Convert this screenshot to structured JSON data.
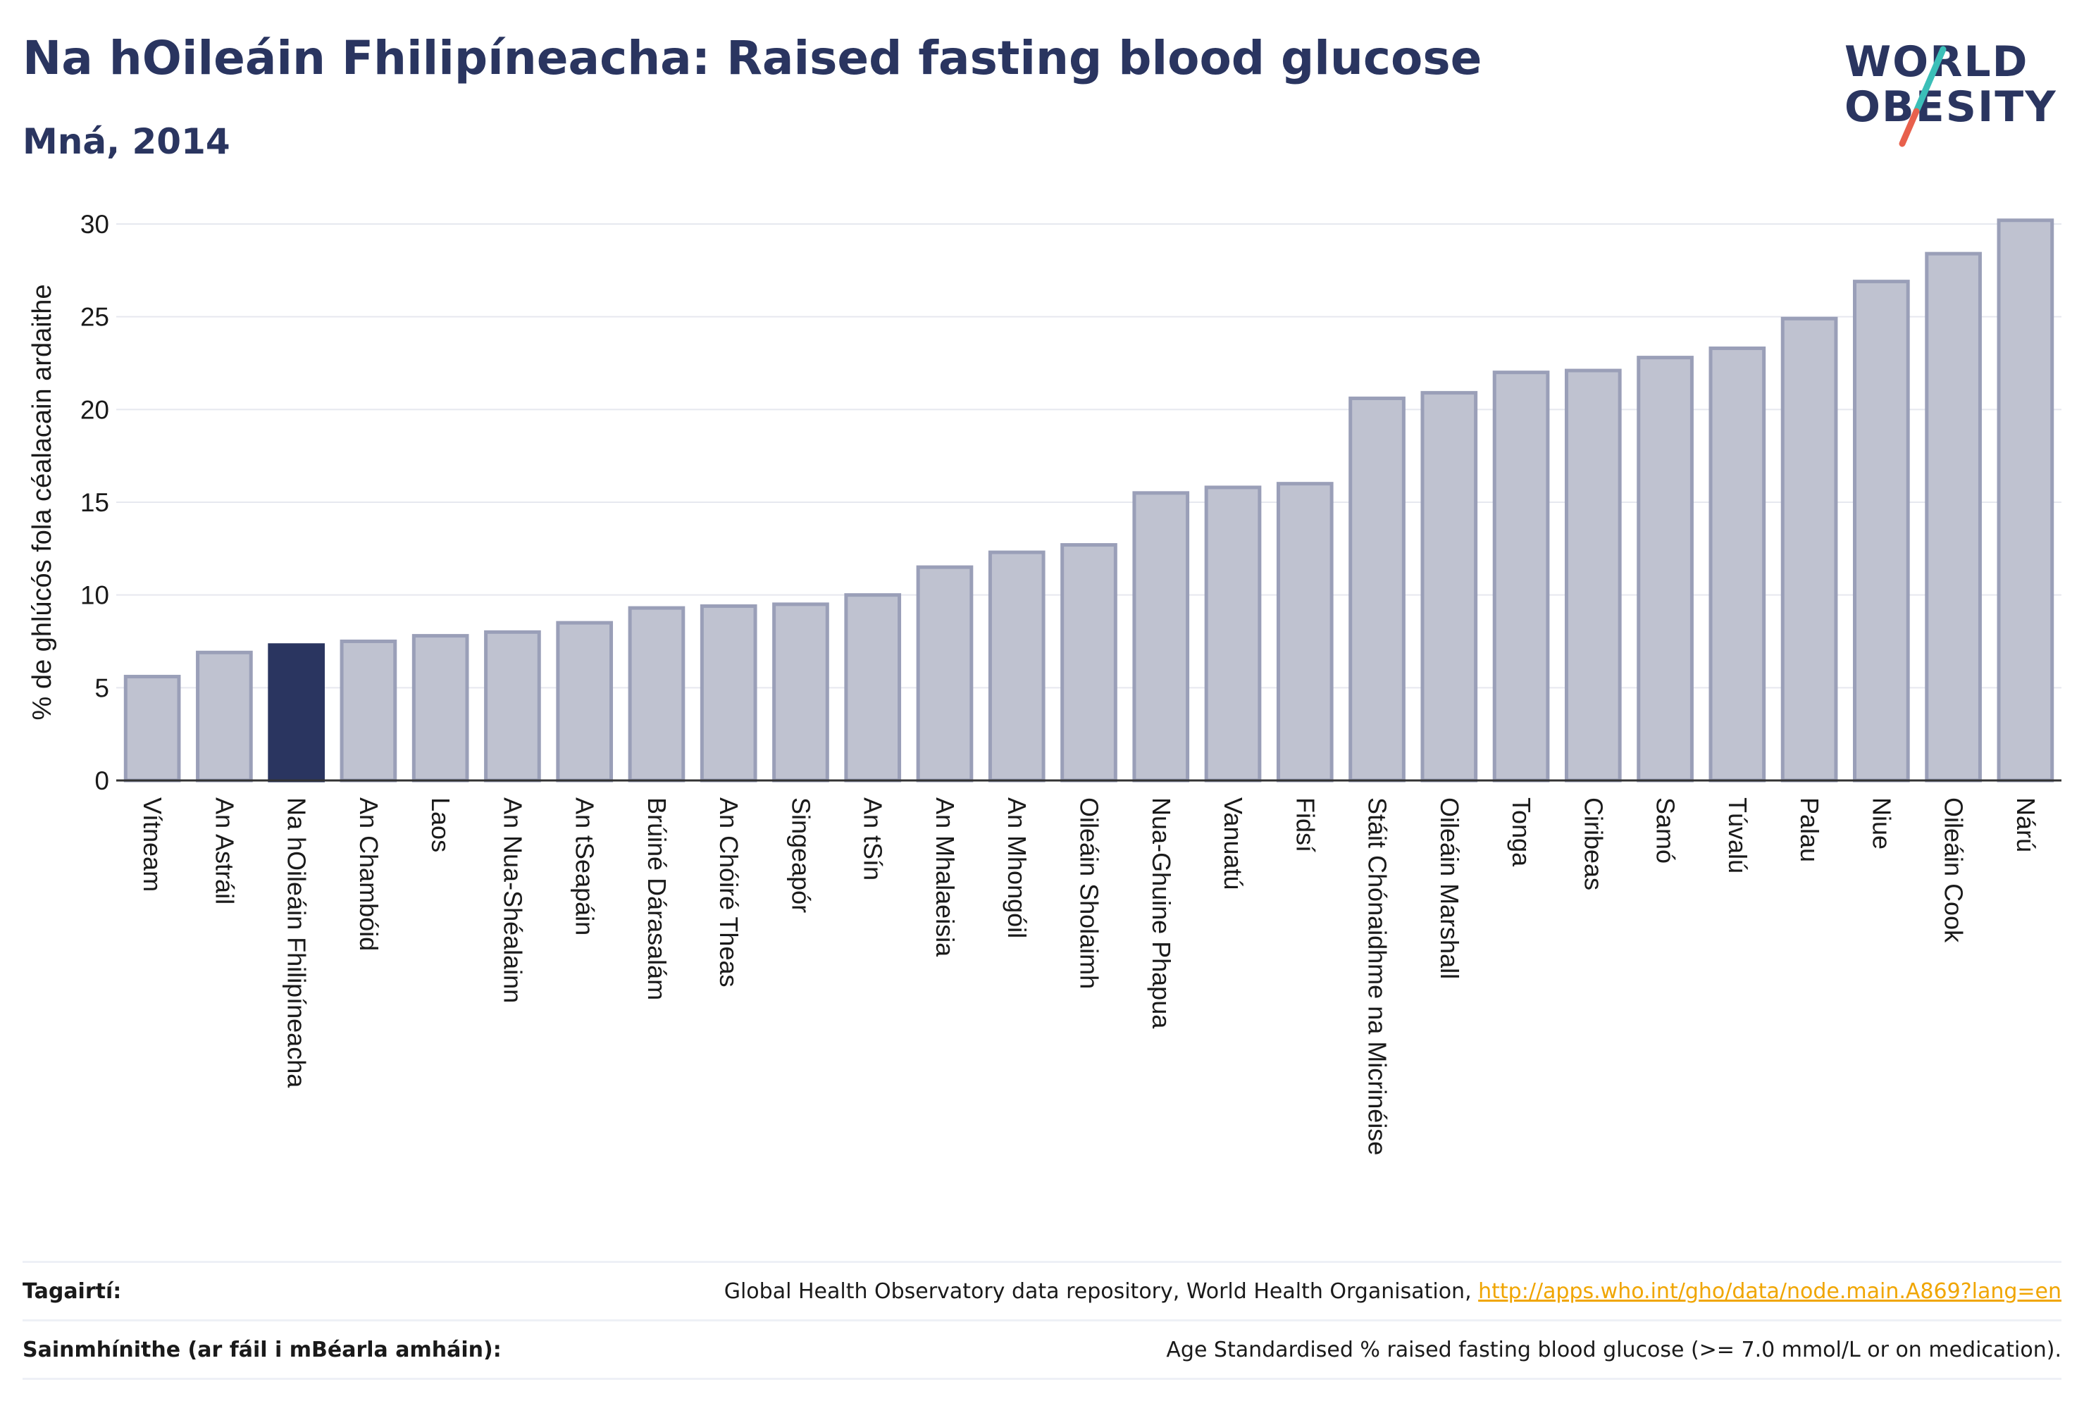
{
  "header": {
    "title": "Na hOileáin Fhilipíneacha: Raised fasting blood glucose",
    "subtitle": "Mná, 2014"
  },
  "logo": {
    "line1": "WORLD",
    "line2": "OBESITY"
  },
  "colors": {
    "highlight": "#2a3560",
    "bar_fill": "#bfc2d0",
    "bar_stroke": "#9a9fb8",
    "grid": "#e6e8ef",
    "logo_slash_teal": "#3bbfb8",
    "logo_slash_red": "#e8604c",
    "link": "#f0a500"
  },
  "chart_data": {
    "type": "bar",
    "ylabel": "% de ghlúcós fola céalacain ardaithe",
    "ylim": [
      0,
      30
    ],
    "yticks": [
      0,
      5,
      10,
      15,
      20,
      25,
      30
    ],
    "grid": true,
    "highlight_category": "Na hOileáin Fhilipíneacha",
    "categories": [
      "Vítneam",
      "An Astráil",
      "Na hOileáin Fhilipíneacha",
      "An Chambóid",
      "Laos",
      "An Nua-Shéalainn",
      "An tSeapáin",
      "Brúiné Dárasalám",
      "An Chóiré Theas",
      "Singeapór",
      "An tSín",
      "An Mhalaeisia",
      "An Mhongóil",
      "Oileáin Sholaimh",
      "Nua-Ghuine Phapua",
      "Vanuatú",
      "Fidsí",
      "Stáit Chónaidhme na Micrinéise",
      "Oileáin Marshall",
      "Tonga",
      "Ciribeas",
      "Samó",
      "Túvalú",
      "Palau",
      "Niue",
      "Oileáin Cook",
      "Nárú"
    ],
    "values": [
      5.6,
      6.9,
      7.3,
      7.5,
      7.8,
      8.0,
      8.5,
      9.3,
      9.4,
      9.5,
      10.0,
      11.5,
      12.3,
      12.7,
      15.5,
      15.8,
      16.0,
      20.6,
      20.9,
      22.0,
      22.1,
      22.8,
      23.3,
      24.9,
      26.9,
      28.4,
      30.2
    ]
  },
  "footer": {
    "references_label": "Tagairtí:",
    "references_text": "Global Health Observatory data repository, World Health Organisation, ",
    "references_link": "http://apps.who.int/gho/data/node.main.A869?lang=en",
    "definitions_label": "Sainmhínithe (ar fáil i mBéarla amháin):",
    "definitions_text": "Age Standardised % raised fasting blood glucose (>= 7.0 mmol/L or on medication)."
  }
}
